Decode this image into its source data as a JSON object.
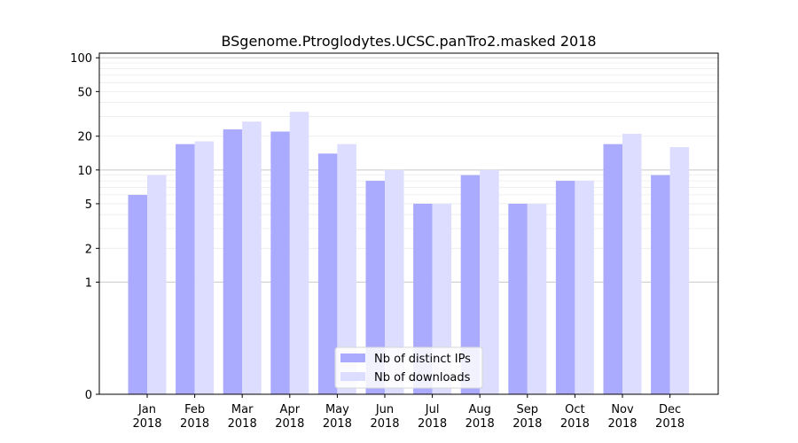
{
  "chart_data": {
    "type": "bar",
    "title": "BSgenome.Ptroglodytes.UCSC.panTro2.masked 2018",
    "xlabel": "",
    "ylabel": "",
    "yscale": "symlog",
    "ylim": [
      0,
      110
    ],
    "yticks": [
      0,
      1,
      2,
      5,
      10,
      20,
      50,
      100
    ],
    "grid": "horizontal",
    "categories": [
      "Jan\n2018",
      "Feb\n2018",
      "Mar\n2018",
      "Apr\n2018",
      "May\n2018",
      "Jun\n2018",
      "Jul\n2018",
      "Aug\n2018",
      "Sep\n2018",
      "Oct\n2018",
      "Nov\n2018",
      "Dec\n2018"
    ],
    "category_lines": [
      [
        "Jan",
        "2018"
      ],
      [
        "Feb",
        "2018"
      ],
      [
        "Mar",
        "2018"
      ],
      [
        "Apr",
        "2018"
      ],
      [
        "May",
        "2018"
      ],
      [
        "Jun",
        "2018"
      ],
      [
        "Jul",
        "2018"
      ],
      [
        "Aug",
        "2018"
      ],
      [
        "Sep",
        "2018"
      ],
      [
        "Oct",
        "2018"
      ],
      [
        "Nov",
        "2018"
      ],
      [
        "Dec",
        "2018"
      ]
    ],
    "series": [
      {
        "name": "Nb of distinct IPs",
        "color": "#aaaaff",
        "values": [
          6,
          17,
          23,
          22,
          14,
          8,
          5,
          9,
          5,
          8,
          17,
          9
        ]
      },
      {
        "name": "Nb of downloads",
        "color": "#ddddff",
        "values": [
          9,
          18,
          27,
          33,
          17,
          10,
          5,
          10,
          5,
          8,
          21,
          16
        ]
      }
    ],
    "legend": "lower-center"
  }
}
